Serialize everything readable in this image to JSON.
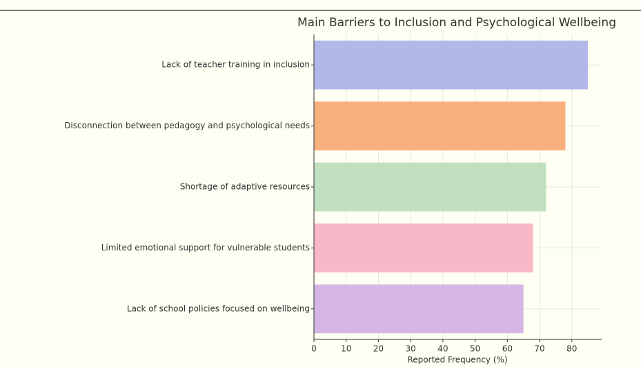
{
  "chart_data": {
    "type": "barh",
    "title": "Main Barriers to Inclusion and Psychological Wellbeing",
    "xlabel": "Reported Frequency (%)",
    "categories": [
      "Lack of teacher training in inclusion",
      "Disconnection between pedagogy and psychological needs",
      "Shortage of adaptive resources",
      "Limited emotional support for vulnerable students",
      "Lack of school policies focused on wellbeing"
    ],
    "values": [
      85,
      78,
      72,
      68,
      65
    ],
    "colors": [
      "#b3b8ea",
      "#f8b07e",
      "#c0e0c0",
      "#f8b8c8",
      "#d6b6e4"
    ],
    "xlim": [
      0,
      89.25
    ],
    "xticks": [
      0,
      10,
      20,
      30,
      40,
      50,
      60,
      70,
      80
    ],
    "grid": true
  }
}
